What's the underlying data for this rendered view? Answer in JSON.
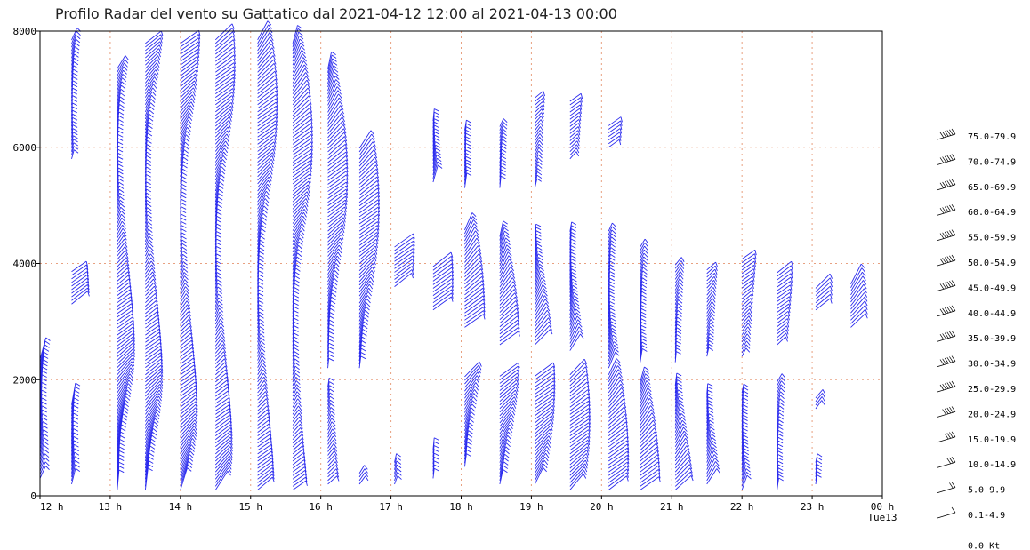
{
  "chart_data": {
    "type": "wind-barb-profile",
    "title": "Profilo Radar del vento su Gattatico dal 2021-04-12 12:00 al 2021-04-13 00:00",
    "xlabel": "",
    "ylabel": "",
    "x_ticks": [
      "12 h",
      "13 h",
      "14 h",
      "15 h",
      "16 h",
      "17 h",
      "18 h",
      "19 h",
      "20 h",
      "21 h",
      "22 h",
      "23 h",
      "00 h"
    ],
    "x_sublabel": "Tue13",
    "xlim": [
      12,
      24
    ],
    "ylim": [
      0,
      8000
    ],
    "y_ticks": [
      "0",
      "2000",
      "4000",
      "6000",
      "8000"
    ],
    "grid": true,
    "barb_color": "#2a2aee",
    "grid_color": "#e8a080",
    "legend": {
      "placement": "right",
      "entries": [
        "75.0-79.9",
        "70.0-74.9",
        "65.0-69.9",
        "60.0-64.9",
        "55.0-59.9",
        "50.0-54.9",
        "45.0-49.9",
        "40.0-44.9",
        "35.0-39.9",
        "30.0-34.9",
        "25.0-29.9",
        "20.0-24.9",
        "15.0-19.9",
        "10.0-14.9",
        "5.0-9.9",
        "0.1-4.9"
      ],
      "calm_label": "0.0 Kt"
    },
    "profiles": [
      {
        "time": 12.0,
        "ranges": [
          [
            300,
            2400
          ]
        ]
      },
      {
        "time": 12.45,
        "ranges": [
          [
            200,
            1600
          ],
          [
            3300,
            3900
          ],
          [
            5800,
            7900
          ]
        ]
      },
      {
        "time": 13.1,
        "ranges": [
          [
            100,
            7400
          ]
        ]
      },
      {
        "time": 13.5,
        "ranges": [
          [
            100,
            7800
          ]
        ]
      },
      {
        "time": 14.0,
        "ranges": [
          [
            100,
            7800
          ]
        ]
      },
      {
        "time": 14.5,
        "ranges": [
          [
            100,
            7900
          ]
        ]
      },
      {
        "time": 15.1,
        "ranges": [
          [
            100,
            7900
          ]
        ]
      },
      {
        "time": 15.6,
        "ranges": [
          [
            100,
            7800
          ]
        ]
      },
      {
        "time": 16.1,
        "ranges": [
          [
            200,
            1900
          ],
          [
            2200,
            7400
          ]
        ]
      },
      {
        "time": 16.55,
        "ranges": [
          [
            200,
            400
          ],
          [
            2200,
            6000
          ]
        ]
      },
      {
        "time": 17.05,
        "ranges": [
          [
            200,
            600
          ],
          [
            3600,
            4300
          ]
        ]
      },
      {
        "time": 17.6,
        "ranges": [
          [
            300,
            800
          ],
          [
            3200,
            4000
          ],
          [
            5400,
            6500
          ]
        ]
      },
      {
        "time": 18.05,
        "ranges": [
          [
            500,
            2100
          ],
          [
            2900,
            4600
          ],
          [
            5300,
            6300
          ]
        ]
      },
      {
        "time": 18.55,
        "ranges": [
          [
            200,
            2100
          ],
          [
            2600,
            4500
          ],
          [
            5300,
            6400
          ]
        ]
      },
      {
        "time": 19.05,
        "ranges": [
          [
            200,
            2100
          ],
          [
            2600,
            4500
          ],
          [
            5300,
            6900
          ]
        ]
      },
      {
        "time": 19.55,
        "ranges": [
          [
            100,
            2100
          ],
          [
            2500,
            4600
          ],
          [
            5800,
            6800
          ]
        ]
      },
      {
        "time": 20.1,
        "ranges": [
          [
            100,
            2100
          ],
          [
            2200,
            4600
          ],
          [
            6000,
            6400
          ]
        ]
      },
      {
        "time": 20.55,
        "ranges": [
          [
            100,
            2000
          ],
          [
            2300,
            4300
          ]
        ]
      },
      {
        "time": 21.05,
        "ranges": [
          [
            100,
            1900
          ],
          [
            2300,
            4000
          ]
        ]
      },
      {
        "time": 21.5,
        "ranges": [
          [
            200,
            1800
          ],
          [
            2400,
            3900
          ]
        ]
      },
      {
        "time": 22.0,
        "ranges": [
          [
            100,
            1800
          ],
          [
            2400,
            4100
          ]
        ]
      },
      {
        "time": 22.5,
        "ranges": [
          [
            100,
            2000
          ],
          [
            2600,
            3900
          ]
        ]
      },
      {
        "time": 23.05,
        "ranges": [
          [
            200,
            600
          ],
          [
            1500,
            1700
          ],
          [
            3200,
            3600
          ]
        ]
      },
      {
        "time": 23.55,
        "ranges": [
          [
            2900,
            3700
          ]
        ]
      }
    ]
  }
}
